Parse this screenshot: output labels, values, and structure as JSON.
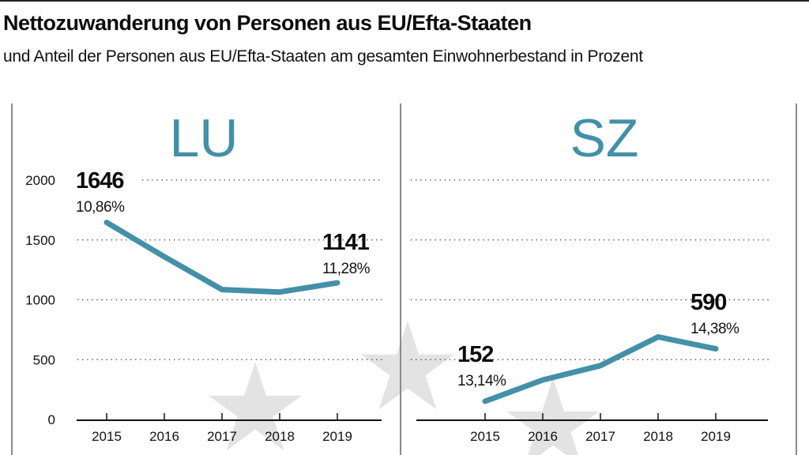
{
  "header": {
    "title": "Nettozuwanderung von Personen aus EU/Efta-Staaten",
    "subtitle": "und Anteil der Personen aus EU/Efta-Staaten am gesamten Einwohnerbestand in Prozent"
  },
  "colors": {
    "line": "#4390a8",
    "panel_title": "#4390a8",
    "star": "#e3e3e3",
    "grid": "#333333",
    "frame": "#8a8a8a"
  },
  "chart_data": [
    {
      "type": "line",
      "title": "LU",
      "x": [
        "2015",
        "2016",
        "2017",
        "2018",
        "2019"
      ],
      "series": [
        {
          "name": "Nettozuwanderung LU",
          "values": [
            1646,
            1360,
            1085,
            1065,
            1141
          ]
        }
      ],
      "ylim": [
        0,
        2000
      ],
      "yticks": [
        0,
        500,
        1000,
        1500,
        2000
      ],
      "ytick_labels": [
        "0",
        "500",
        "1000",
        "1500",
        "2000"
      ],
      "grid": true,
      "annotations": [
        {
          "x": "2015",
          "value_label": "1646",
          "pct_label": "10,86%"
        },
        {
          "x": "2019",
          "value_label": "1141",
          "pct_label": "11,28%"
        }
      ]
    },
    {
      "type": "line",
      "title": "SZ",
      "x": [
        "2015",
        "2016",
        "2017",
        "2018",
        "2019"
      ],
      "series": [
        {
          "name": "Nettozuwanderung SZ",
          "values": [
            152,
            330,
            450,
            690,
            590
          ]
        }
      ],
      "ylim": [
        0,
        2000
      ],
      "yticks": [
        0,
        500,
        1000,
        1500,
        2000
      ],
      "grid": true,
      "annotations": [
        {
          "x": "2015",
          "value_label": "152",
          "pct_label": "13,14%"
        },
        {
          "x": "2019",
          "value_label": "590",
          "pct_label": "14,38%"
        }
      ]
    }
  ]
}
